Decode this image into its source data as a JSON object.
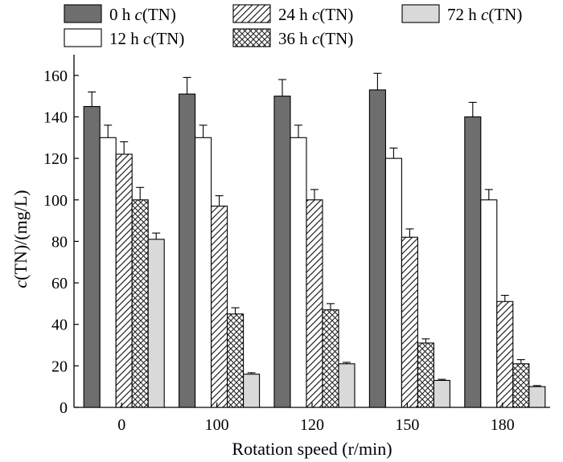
{
  "chart_data": {
    "type": "bar",
    "xlabel": "Rotation speed (r/min)",
    "ylabel_italic": "c",
    "ylabel_rest": "(TN)/(mg/L)",
    "ylim": [
      0,
      170
    ],
    "yticks": [
      0,
      20,
      40,
      60,
      80,
      100,
      120,
      140,
      160
    ],
    "categories": [
      "0",
      "100",
      "120",
      "150",
      "180"
    ],
    "legend_position": "top",
    "series": [
      {
        "name_prefix": "0 h ",
        "name_italic": "c",
        "name_suffix": "(TN)",
        "fill": "solid",
        "color": "#6e6e6e",
        "values": [
          145,
          151,
          150,
          153,
          140
        ],
        "errors": [
          7,
          8,
          8,
          8,
          7
        ]
      },
      {
        "name_prefix": "12 h ",
        "name_italic": "c",
        "name_suffix": "(TN)",
        "fill": "empty",
        "color": "#ffffff",
        "values": [
          130,
          130,
          130,
          120,
          100
        ],
        "errors": [
          6,
          6,
          6,
          5,
          5
        ]
      },
      {
        "name_prefix": "24 h ",
        "name_italic": "c",
        "name_suffix": "(TN)",
        "fill": "diagonal",
        "color": "#ffffff",
        "values": [
          122,
          97,
          100,
          82,
          51
        ],
        "errors": [
          6,
          5,
          5,
          4,
          3
        ]
      },
      {
        "name_prefix": "36 h ",
        "name_italic": "c",
        "name_suffix": "(TN)",
        "fill": "crosshatch",
        "color": "#ffffff",
        "values": [
          100,
          45,
          47,
          31,
          21
        ],
        "errors": [
          6,
          3,
          3,
          2,
          2
        ]
      },
      {
        "name_prefix": "72 h ",
        "name_italic": "c",
        "name_suffix": "(TN)",
        "fill": "light",
        "color": "#d9d9d9",
        "values": [
          81,
          16,
          21,
          13,
          10
        ],
        "errors": [
          3,
          0.7,
          0.7,
          0.5,
          0.5
        ]
      }
    ]
  }
}
